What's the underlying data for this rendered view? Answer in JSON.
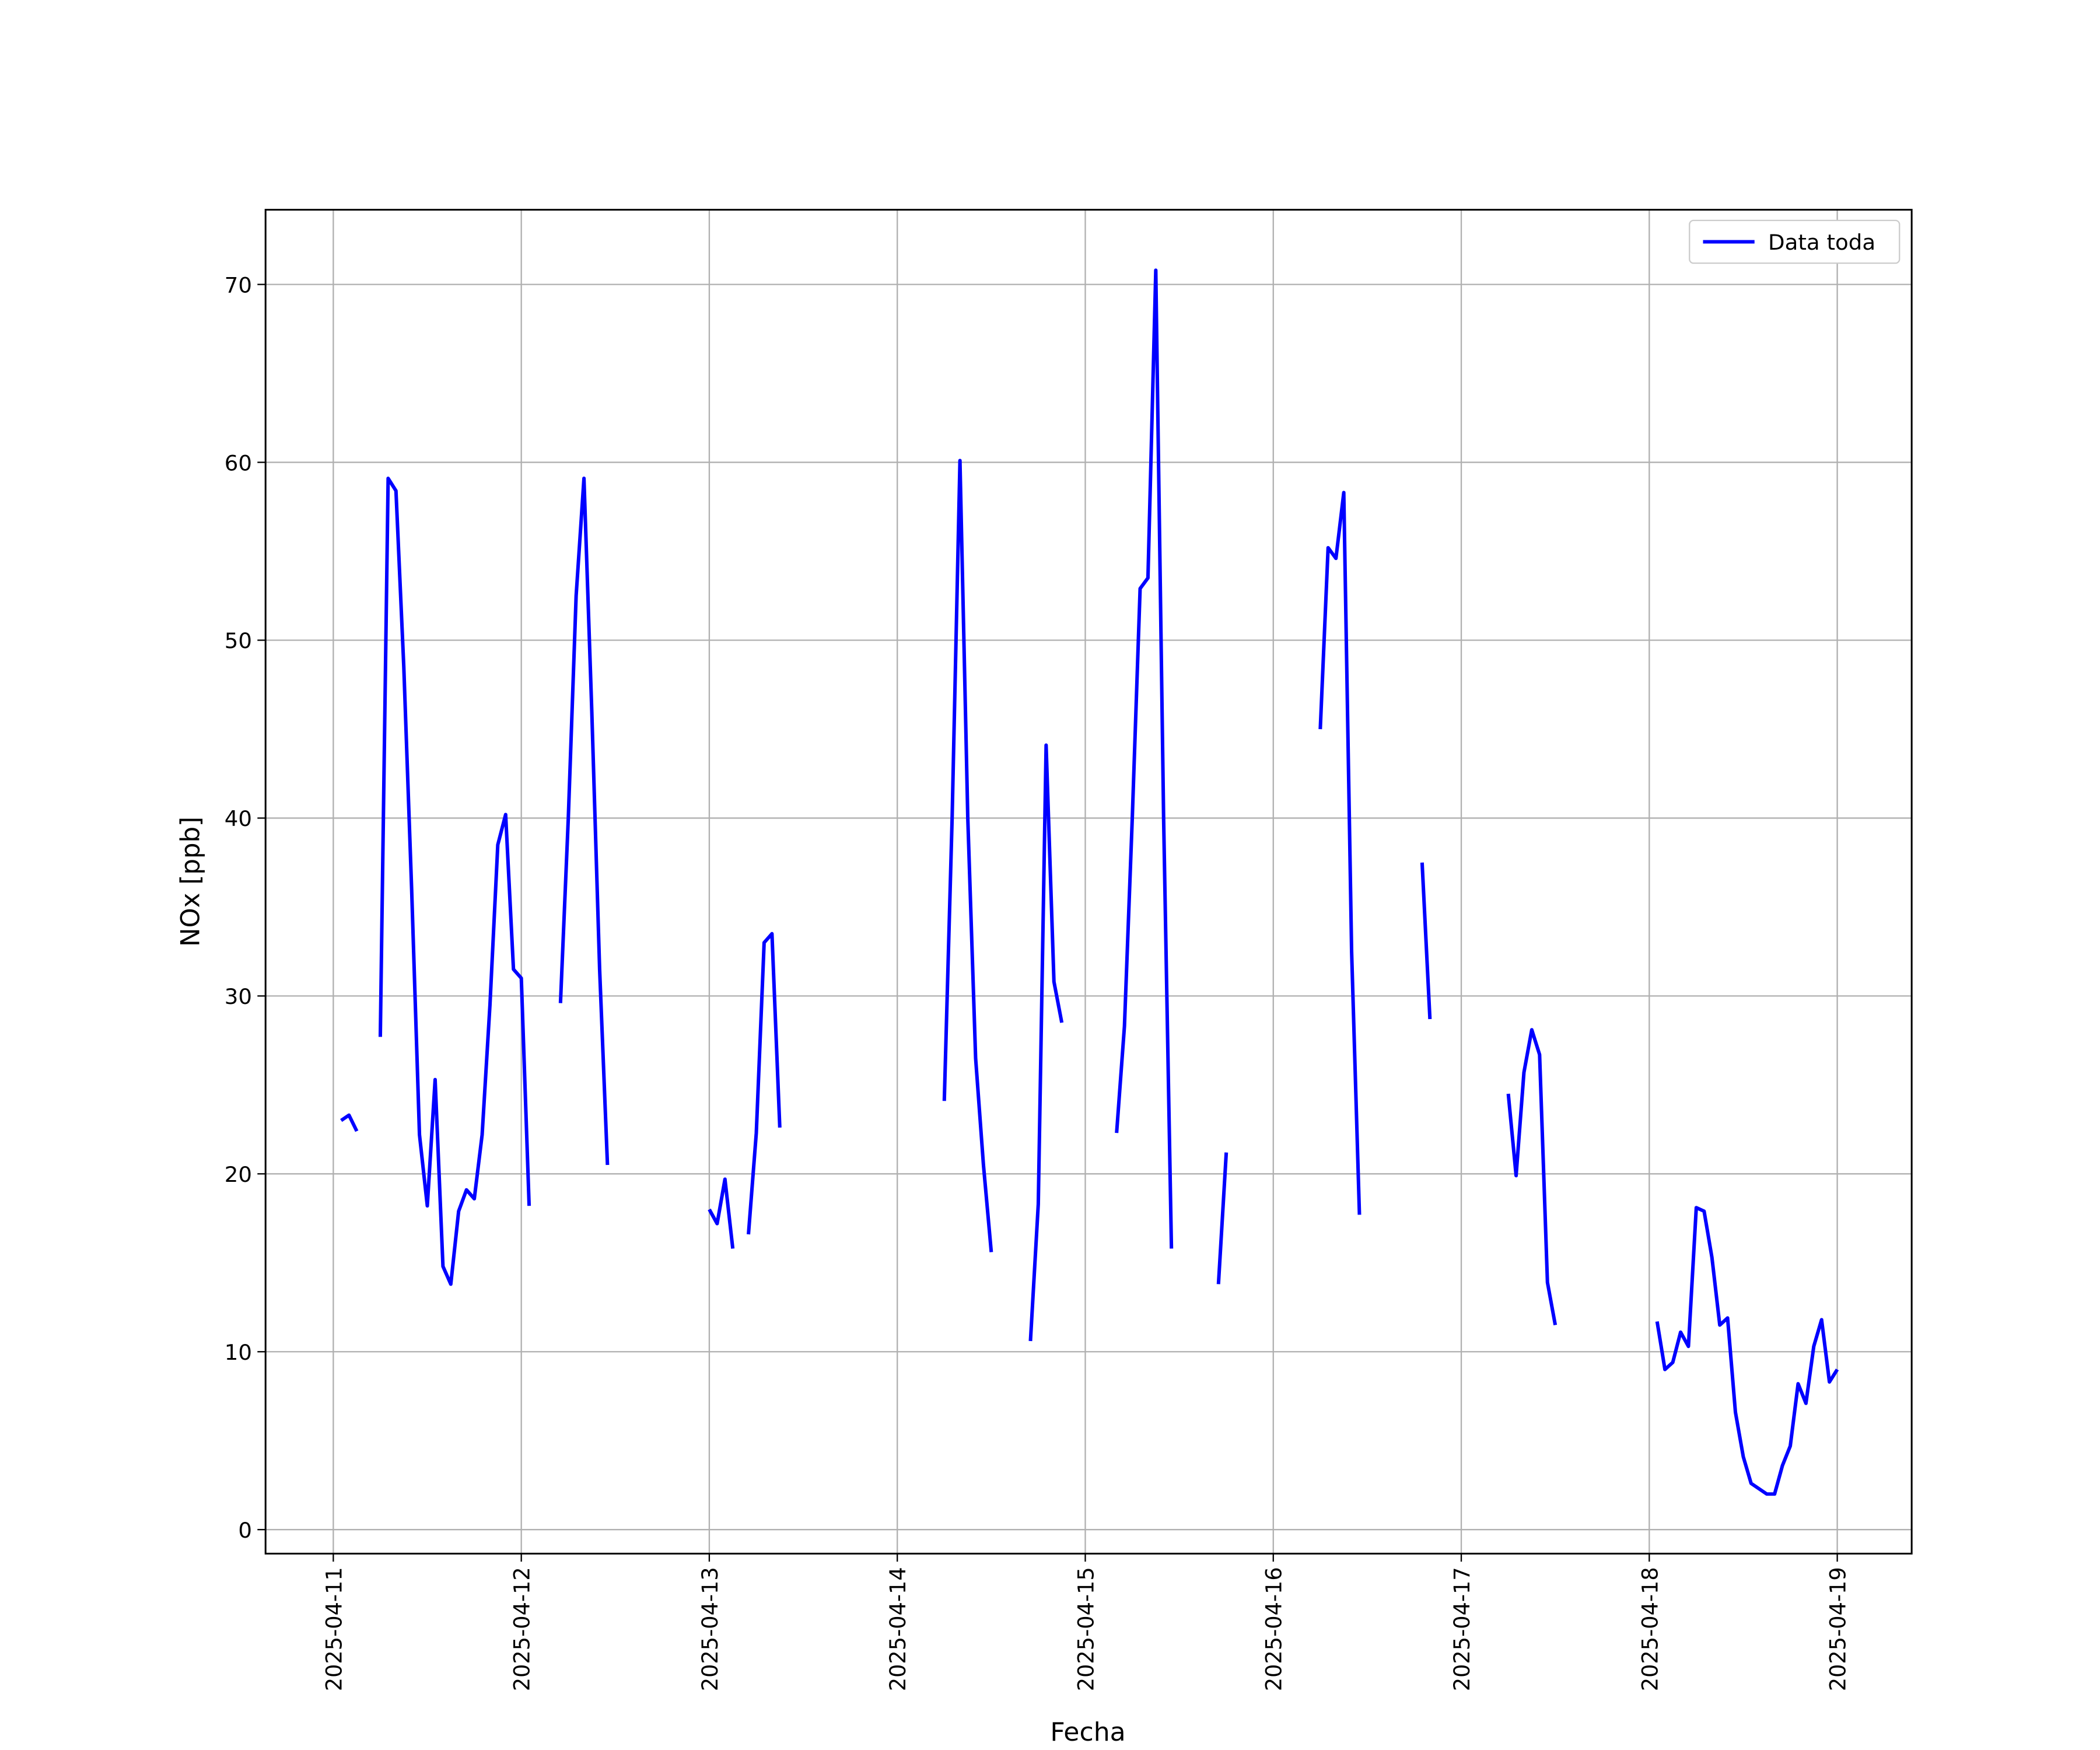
{
  "chart_data": {
    "type": "line",
    "xlabel": "Fecha",
    "ylabel": "NOx [ppb]",
    "xlim": [
      "2025-04-10 15:21",
      "2025-04-19 09:30"
    ],
    "xticks": [
      "2025-04-11",
      "2025-04-12",
      "2025-04-13",
      "2025-04-14",
      "2025-04-15",
      "2025-04-16",
      "2025-04-17",
      "2025-04-18",
      "2025-04-19"
    ],
    "ylim": [
      -1.35,
      74.2
    ],
    "yticks": [
      0,
      10,
      20,
      30,
      40,
      50,
      60,
      70
    ],
    "grid": true,
    "legend": "upper right",
    "x": [
      "2025-04-11 01:00",
      "2025-04-11 02:00",
      "2025-04-11 03:00",
      "2025-04-11 04:00",
      "2025-04-11 06:00",
      "2025-04-11 07:00",
      "2025-04-11 08:00",
      "2025-04-11 09:00",
      "2025-04-11 10:00",
      "2025-04-11 11:00",
      "2025-04-11 12:00",
      "2025-04-11 13:00",
      "2025-04-11 14:00",
      "2025-04-11 15:00",
      "2025-04-11 16:00",
      "2025-04-11 17:00",
      "2025-04-11 18:00",
      "2025-04-11 19:00",
      "2025-04-11 20:00",
      "2025-04-11 21:00",
      "2025-04-11 22:00",
      "2025-04-11 23:00",
      "2025-04-12 00:00",
      "2025-04-12 01:00",
      "2025-04-12 02:00",
      "2025-04-12 05:00",
      "2025-04-12 06:00",
      "2025-04-12 07:00",
      "2025-04-12 08:00",
      "2025-04-12 09:00",
      "2025-04-12 10:00",
      "2025-04-12 11:00",
      "2025-04-12 16:00",
      "2025-04-13 00:00",
      "2025-04-13 01:00",
      "2025-04-13 02:00",
      "2025-04-13 03:00",
      "2025-04-13 04:00",
      "2025-04-13 05:00",
      "2025-04-13 06:00",
      "2025-04-13 07:00",
      "2025-04-13 08:00",
      "2025-04-13 09:00",
      "2025-04-13 12:00",
      "2025-04-14 06:00",
      "2025-04-14 07:00",
      "2025-04-14 08:00",
      "2025-04-14 09:00",
      "2025-04-14 10:00",
      "2025-04-14 11:00",
      "2025-04-14 12:00",
      "2025-04-14 14:00",
      "2025-04-14 17:00",
      "2025-04-14 18:00",
      "2025-04-14 19:00",
      "2025-04-14 20:00",
      "2025-04-14 21:00",
      "2025-04-14 23:00",
      "2025-04-15 04:00",
      "2025-04-15 05:00",
      "2025-04-15 06:00",
      "2025-04-15 07:00",
      "2025-04-15 08:00",
      "2025-04-15 09:00",
      "2025-04-15 10:00",
      "2025-04-15 11:00",
      "2025-04-15 14:00",
      "2025-04-15 17:00",
      "2025-04-15 18:00",
      "2025-04-16 00:00",
      "2025-04-16 06:00",
      "2025-04-16 07:00",
      "2025-04-16 08:00",
      "2025-04-16 09:00",
      "2025-04-16 10:00",
      "2025-04-16 11:00",
      "2025-04-16 15:00",
      "2025-04-16 19:00",
      "2025-04-16 20:00",
      "2025-04-17 01:00",
      "2025-04-17 06:00",
      "2025-04-17 07:00",
      "2025-04-17 08:00",
      "2025-04-17 09:00",
      "2025-04-17 10:00",
      "2025-04-17 11:00",
      "2025-04-17 12:00",
      "2025-04-17 16:00",
      "2025-04-18 01:00",
      "2025-04-18 02:00",
      "2025-04-18 03:00",
      "2025-04-18 04:00",
      "2025-04-18 05:00",
      "2025-04-18 06:00",
      "2025-04-18 07:00",
      "2025-04-18 08:00",
      "2025-04-18 09:00",
      "2025-04-18 10:00",
      "2025-04-18 11:00",
      "2025-04-18 12:00",
      "2025-04-18 13:00",
      "2025-04-18 14:00",
      "2025-04-18 15:00",
      "2025-04-18 16:00",
      "2025-04-18 17:00",
      "2025-04-18 18:00",
      "2025-04-18 19:00",
      "2025-04-18 20:00",
      "2025-04-18 21:00",
      "2025-04-18 22:00",
      "2025-04-18 23:00",
      "2025-04-19 00:00"
    ],
    "series": [
      {
        "name": "Data toda",
        "color": "#0000ff",
        "values": [
          23.0,
          23.3,
          22.4,
          null,
          27.7,
          59.1,
          58.4,
          48.5,
          36,
          22.2,
          18.2,
          25.3,
          14.8,
          13.8,
          17.9,
          19.1,
          18.6,
          22.2,
          29.5,
          38.5,
          40.2,
          31.5,
          31.0,
          18.2,
          null,
          29.6,
          40,
          52.5,
          59.1,
          46,
          31.5,
          20.5,
          null,
          18.0,
          17.2,
          19.7,
          15.8,
          null,
          16.6,
          22.3,
          33.0,
          33.5,
          22.6,
          null,
          24.1,
          40,
          60.1,
          40,
          26.5,
          20.5,
          15.6,
          null,
          10.6,
          18.3,
          44.1,
          30.8,
          28.5,
          null,
          22.3,
          28.3,
          40,
          52.9,
          53.5,
          70.8,
          40,
          15.8,
          null,
          13.8,
          21.2,
          null,
          45,
          55.2,
          54.6,
          58.3,
          32.5,
          17.7,
          null,
          37.5,
          28.7,
          null,
          24.5,
          19.9,
          25.7,
          28.1,
          26.7,
          13.9,
          11.5,
          null,
          11.7,
          9.0,
          9.4,
          11.1,
          10.3,
          18.1,
          17.9,
          15.3,
          11.5,
          11.9,
          6.6,
          4.1,
          2.6,
          2.3,
          2.0,
          2.0,
          3.6,
          4.7,
          8.2,
          7.1,
          10.3,
          11.8,
          8.3,
          9.0
        ]
      }
    ]
  }
}
